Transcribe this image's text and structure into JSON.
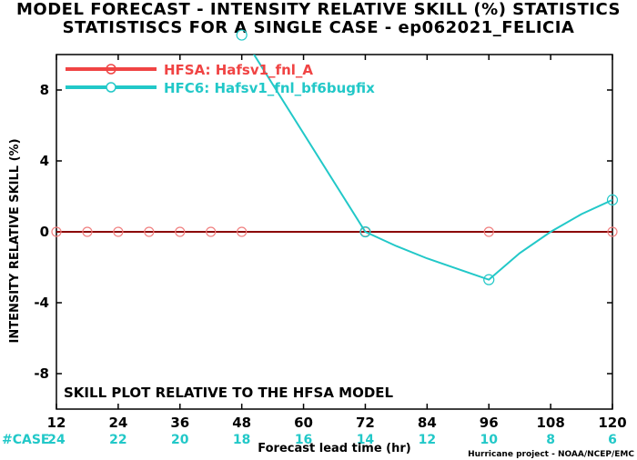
{
  "title_line1": "MODEL FORECAST - INTENSITY RELATIVE SKILL (%) STATISTICS",
  "title_line2": "STATISTISCS FOR A SINGLE CASE - ep062021_FELICIA",
  "annotation": "SKILL PLOT RELATIVE TO THE HFSA MODEL",
  "credit": "Hurricane project - NOAA/NCEP/EMC",
  "case_label": "#CASE",
  "colors": {
    "hfsa": "#f04444",
    "hfc6": "#22c8c8",
    "case_text": "#22c8c8"
  },
  "chart_data": {
    "type": "line",
    "xlabel": "Forecast lead time (hr)",
    "ylabel": "INTENSITY RELATIVE SKILL (%)",
    "xlim": [
      12,
      120
    ],
    "ylim": [
      -10,
      10
    ],
    "x_ticks": [
      12,
      24,
      36,
      48,
      60,
      72,
      84,
      96,
      108,
      120
    ],
    "y_ticks": [
      -8,
      -4,
      0,
      4,
      8
    ],
    "case_counts": [
      24,
      22,
      20,
      18,
      16,
      14,
      12,
      10,
      8,
      6
    ],
    "legend_position": "top-left",
    "grid": false,
    "series": [
      {
        "name": "HFSA: Hafsv1_fnl_A",
        "color": "#f04444",
        "x": [
          12,
          18,
          24,
          30,
          36,
          42,
          48,
          54,
          60,
          66,
          72,
          78,
          84,
          90,
          96,
          102,
          108,
          114,
          120
        ],
        "y": [
          0,
          0,
          0,
          0,
          0,
          0,
          0,
          0,
          0,
          0,
          0,
          0,
          0,
          0,
          0,
          0,
          0,
          0,
          0
        ],
        "markers_x": [
          12,
          18,
          24,
          30,
          36,
          42,
          48,
          72,
          96,
          120
        ]
      },
      {
        "name": "HFC6: Hafsv1_fnl_bf6bugfix",
        "color": "#22c8c8",
        "x": [
          48,
          72,
          78,
          84,
          90,
          96,
          102,
          108,
          114,
          120
        ],
        "y": [
          11.1,
          0,
          -0.8,
          -1.5,
          -2.1,
          -2.7,
          -1.2,
          0,
          1.0,
          1.8
        ],
        "markers_x": [
          48,
          72,
          96,
          120
        ]
      }
    ]
  }
}
